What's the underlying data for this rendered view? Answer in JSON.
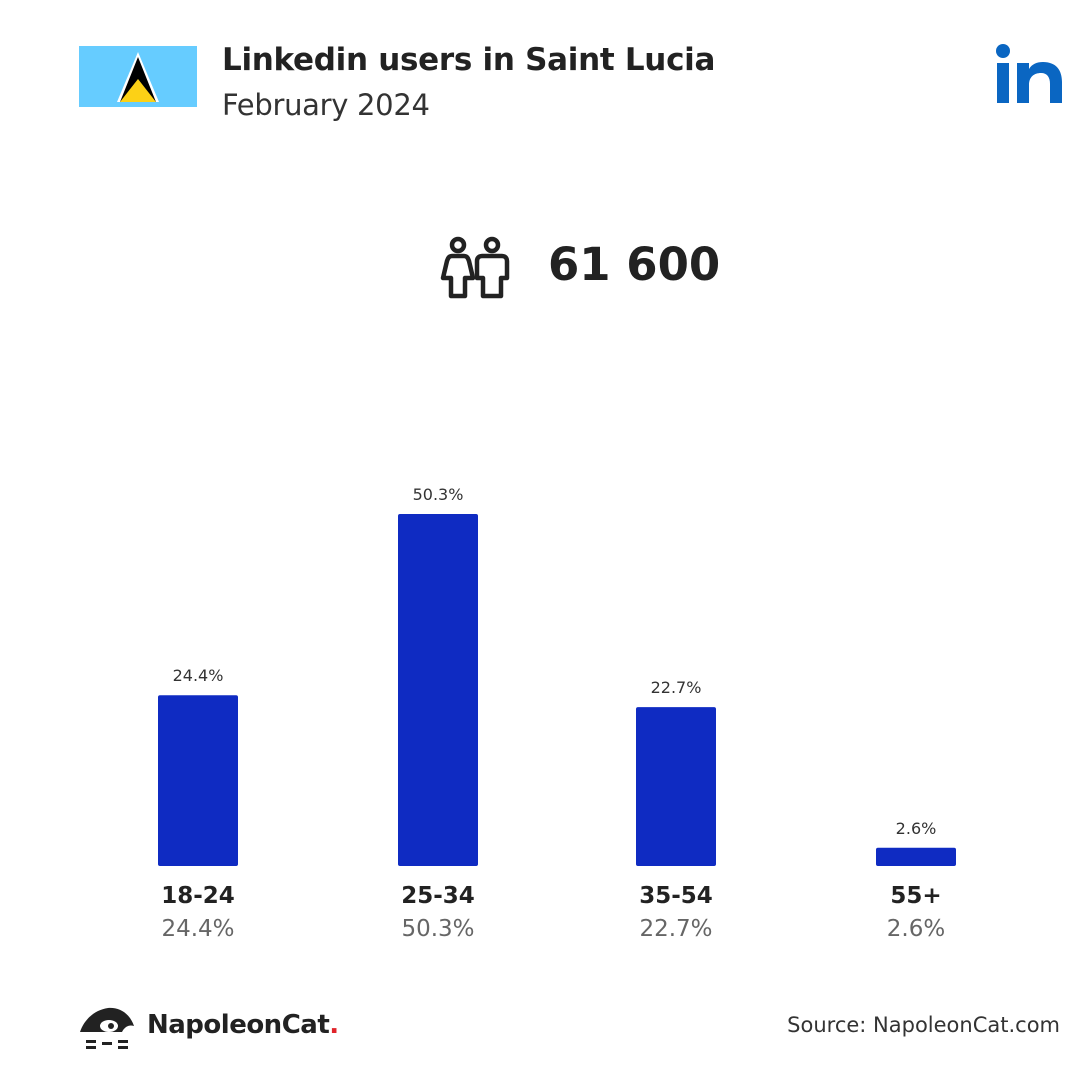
{
  "header": {
    "title": "Linkedin users in Saint Lucia",
    "subtitle": "February 2024"
  },
  "summary": {
    "total_users": "61 600",
    "icon": "people-icon"
  },
  "colors": {
    "bar": "#0f2bc2",
    "flag_blue": "#66ccff",
    "linkedin_blue": "#0a66c2"
  },
  "chart_data": {
    "type": "bar",
    "title": "",
    "xlabel": "",
    "ylabel": "",
    "categories": [
      "18-24",
      "25-34",
      "35-54",
      "55+"
    ],
    "values": [
      24.4,
      50.3,
      22.7,
      2.6
    ],
    "value_labels": [
      "24.4%",
      "50.3%",
      "22.7%",
      "2.6%"
    ],
    "ylim": [
      0,
      50.3
    ],
    "grid": false,
    "legend": "none"
  },
  "footer": {
    "brand": "NapoleonCat",
    "brand_dot": ".",
    "source": "Source: NapoleonCat.com"
  }
}
